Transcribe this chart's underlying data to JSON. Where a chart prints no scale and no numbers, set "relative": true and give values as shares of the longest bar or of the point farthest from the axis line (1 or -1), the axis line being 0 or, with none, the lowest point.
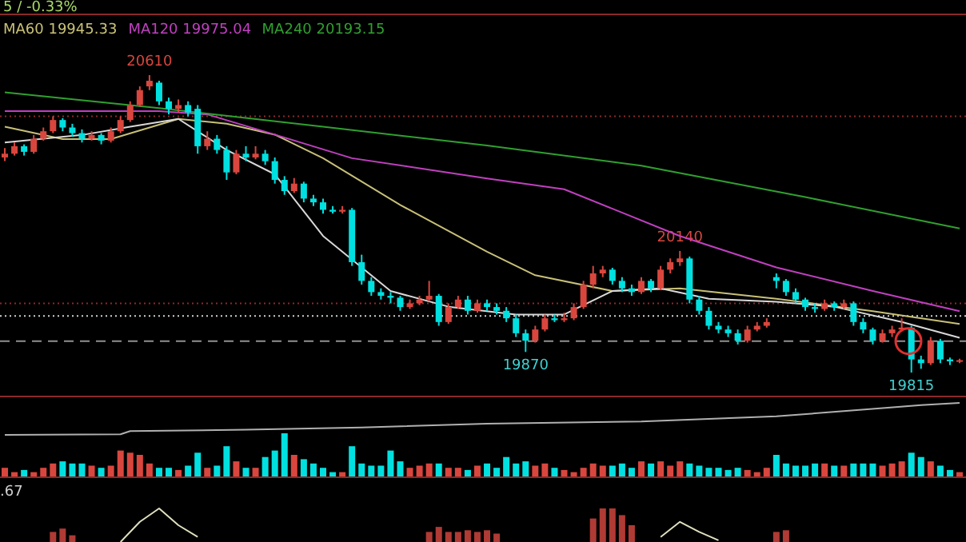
{
  "chart_data": [
    {
      "type": "candlestick",
      "title": "5 / -0.33%",
      "legend": "top left",
      "annotations": [
        {
          "text": "20610",
          "y": 20610
        },
        {
          "text": "20140",
          "y": 20140
        },
        {
          "text": "19870",
          "y": 19870
        },
        {
          "text": "19815",
          "y": 19815
        }
      ],
      "categories": [
        null,
        null,
        null,
        null,
        null,
        null,
        null,
        null,
        null,
        null,
        null,
        null,
        null,
        null,
        null,
        null,
        null,
        null,
        null,
        null,
        null,
        null,
        null,
        null,
        null,
        null,
        null,
        null,
        null,
        null,
        null,
        null,
        null,
        null,
        null,
        null,
        null,
        null,
        null,
        null,
        null,
        null,
        null,
        null,
        null,
        null,
        null,
        null,
        null,
        null,
        null,
        null,
        null,
        null,
        null,
        null,
        null,
        null,
        null,
        null,
        null,
        null,
        null,
        null,
        null,
        null,
        null,
        null,
        null,
        null,
        null,
        null,
        null,
        null,
        null,
        null,
        null,
        null,
        null,
        null,
        null,
        null,
        null,
        null,
        null,
        null,
        null,
        null,
        null,
        null,
        null,
        null,
        null,
        null,
        null,
        null,
        null,
        null,
        null,
        null
      ],
      "ohlc": [
        [
          20390,
          20415,
          20380,
          20400
        ],
        [
          20400,
          20430,
          20395,
          20420
        ],
        [
          20420,
          20425,
          20395,
          20405
        ],
        [
          20405,
          20450,
          20400,
          20440
        ],
        [
          20440,
          20470,
          20435,
          20460
        ],
        [
          20460,
          20500,
          20455,
          20490
        ],
        [
          20490,
          20495,
          20460,
          20470
        ],
        [
          20470,
          20480,
          20445,
          20455
        ],
        [
          20455,
          20465,
          20430,
          20440
        ],
        [
          20440,
          20460,
          20435,
          20450
        ],
        [
          20450,
          20455,
          20425,
          20435
        ],
        [
          20435,
          20470,
          20430,
          20460
        ],
        [
          20460,
          20500,
          20455,
          20490
        ],
        [
          20490,
          20540,
          20485,
          20530
        ],
        [
          20530,
          20580,
          20525,
          20570
        ],
        [
          20580,
          20610,
          20570,
          20595
        ],
        [
          20590,
          20595,
          20530,
          20540
        ],
        [
          20540,
          20550,
          20505,
          20520
        ],
        [
          20520,
          20545,
          20510,
          20530
        ],
        [
          20530,
          20540,
          20500,
          20510
        ],
        [
          20520,
          20530,
          20400,
          20420
        ],
        [
          20420,
          20460,
          20410,
          20440
        ],
        [
          20440,
          20450,
          20400,
          20410
        ],
        [
          20410,
          20420,
          20330,
          20350
        ],
        [
          20350,
          20410,
          20345,
          20400
        ],
        [
          20400,
          20420,
          20380,
          20390
        ],
        [
          20390,
          20420,
          20385,
          20400
        ],
        [
          20400,
          20410,
          20370,
          20380
        ],
        [
          20380,
          20390,
          20320,
          20330
        ],
        [
          20330,
          20340,
          20290,
          20300
        ],
        [
          20300,
          20335,
          20295,
          20320
        ],
        [
          20320,
          20325,
          20270,
          20280
        ],
        [
          20280,
          20290,
          20260,
          20270
        ],
        [
          20270,
          20280,
          20240,
          20250
        ],
        [
          20250,
          20260,
          20240,
          20245
        ],
        [
          20245,
          20260,
          20240,
          20250
        ],
        [
          20250,
          20255,
          20100,
          20110
        ],
        [
          20110,
          20130,
          20050,
          20060
        ],
        [
          20060,
          20070,
          20020,
          20030
        ],
        [
          20030,
          20040,
          20010,
          20020
        ],
        [
          20020,
          20030,
          20000,
          20015
        ],
        [
          20015,
          20020,
          19980,
          19990
        ],
        [
          19990,
          20010,
          19985,
          20000
        ],
        [
          20000,
          20020,
          19995,
          20010
        ],
        [
          20010,
          20060,
          20005,
          20020
        ],
        [
          20020,
          20025,
          19940,
          19950
        ],
        [
          19950,
          20000,
          19945,
          19990
        ],
        [
          19990,
          20020,
          19985,
          20010
        ],
        [
          20010,
          20020,
          19970,
          19980
        ],
        [
          19980,
          20010,
          19975,
          20000
        ],
        [
          20000,
          20010,
          19980,
          19990
        ],
        [
          19990,
          20000,
          19970,
          19980
        ],
        [
          19980,
          19990,
          19950,
          19960
        ],
        [
          19960,
          19970,
          19910,
          19920
        ],
        [
          19920,
          19930,
          19870,
          19900
        ],
        [
          19900,
          19940,
          19895,
          19930
        ],
        [
          19930,
          19970,
          19925,
          19960
        ],
        [
          19960,
          19970,
          19950,
          19955
        ],
        [
          19955,
          19975,
          19950,
          19960
        ],
        [
          19960,
          20000,
          19955,
          19990
        ],
        [
          19990,
          20060,
          19985,
          20050
        ],
        [
          20050,
          20100,
          20040,
          20080
        ],
        [
          20080,
          20100,
          20070,
          20090
        ],
        [
          20090,
          20095,
          20050,
          20060
        ],
        [
          20060,
          20070,
          20030,
          20040
        ],
        [
          20040,
          20050,
          20020,
          20030
        ],
        [
          20030,
          20070,
          20025,
          20060
        ],
        [
          20060,
          20065,
          20030,
          20040
        ],
        [
          20040,
          20100,
          20035,
          20090
        ],
        [
          20090,
          20120,
          20080,
          20110
        ],
        [
          20110,
          20140,
          20100,
          20120
        ],
        [
          20120,
          20125,
          20000,
          20010
        ],
        [
          20010,
          20020,
          19970,
          19980
        ],
        [
          19980,
          19990,
          19930,
          19940
        ],
        [
          19940,
          19950,
          19920,
          19930
        ],
        [
          19930,
          19940,
          19910,
          19920
        ],
        [
          19920,
          19930,
          19890,
          19900
        ],
        [
          19900,
          19940,
          19895,
          19930
        ],
        [
          19930,
          19950,
          19925,
          19940
        ],
        [
          19940,
          19960,
          19935,
          19950
        ],
        [
          20070,
          20080,
          20040,
          20060
        ],
        [
          20060,
          20065,
          20020,
          20030
        ],
        [
          20030,
          20040,
          20000,
          20010
        ],
        [
          20010,
          20015,
          19980,
          19990
        ],
        [
          19990,
          20000,
          19975,
          19985
        ],
        [
          19985,
          20010,
          19980,
          20000
        ],
        [
          20000,
          20005,
          19980,
          19990
        ],
        [
          19990,
          20010,
          19985,
          20000
        ],
        [
          20000,
          20005,
          19940,
          19950
        ],
        [
          19950,
          19960,
          19920,
          19930
        ],
        [
          19930,
          19935,
          19890,
          19900
        ],
        [
          19900,
          19930,
          19895,
          19920
        ],
        [
          19920,
          19940,
          19910,
          19930
        ],
        [
          19930,
          19960,
          19925,
          19935
        ],
        [
          19935,
          19940,
          19815,
          19850
        ],
        [
          19850,
          19860,
          19825,
          19840
        ],
        [
          19840,
          19910,
          19835,
          19900
        ],
        [
          19900,
          19905,
          19840,
          19850
        ],
        [
          19850,
          19855,
          19835,
          19845
        ],
        [
          19845,
          19852,
          19840,
          19848
        ]
      ],
      "series": [
        {
          "type": "line",
          "name": "MA60 19945.33",
          "color": "#c8c078",
          "values": [
            20472,
            null,
            null,
            null,
            null,
            null,
            20439,
            null,
            null,
            null,
            null,
            20439,
            null,
            null,
            null,
            null,
            null,
            null,
            20493,
            null,
            null,
            null,
            null,
            20480,
            null,
            null,
            null,
            null,
            20451,
            null,
            null,
            null,
            null,
            20388,
            null,
            null,
            null,
            null,
            null,
            null,
            null,
            20263,
            null,
            null,
            null,
            null,
            null,
            null,
            null,
            null,
            20138,
            null,
            null,
            null,
            null,
            20075,
            null,
            null,
            null,
            null,
            null,
            null,
            null,
            20033,
            null,
            null,
            null,
            null,
            null,
            null,
            20040,
            null,
            null,
            null,
            null,
            null,
            null,
            null,
            null,
            null,
            20012,
            null,
            null,
            null,
            null,
            null,
            null,
            null,
            null,
            null,
            19979,
            null,
            null,
            null,
            null,
            null,
            null,
            null,
            null,
            19945
          ]
        },
        {
          "type": "line",
          "name": "MA120 19975.04",
          "color": "#c040c0",
          "values": [
            20514,
            null,
            null,
            null,
            null,
            null,
            null,
            null,
            null,
            null,
            null,
            null,
            null,
            null,
            null,
            null,
            20514,
            null,
            null,
            null,
            null,
            20505,
            null,
            null,
            null,
            null,
            null,
            null,
            20451,
            null,
            null,
            null,
            null,
            null,
            null,
            null,
            20388,
            null,
            null,
            null,
            null,
            null,
            null,
            null,
            null,
            null,
            null,
            null,
            null,
            null,
            20334,
            null,
            null,
            null,
            null,
            null,
            null,
            null,
            20305,
            null,
            null,
            null,
            null,
            null,
            null,
            null,
            null,
            null,
            null,
            null,
            20180,
            null,
            null,
            null,
            null,
            null,
            null,
            null,
            null,
            null,
            20096,
            null,
            null,
            null,
            null,
            null,
            null,
            null,
            null,
            null,
            20033,
            null,
            null,
            null,
            null,
            null,
            null,
            null,
            null,
            19979
          ]
        },
        {
          "type": "line",
          "name": "MA240 20193.15",
          "color": "#30a030",
          "values": [
            20564,
            null,
            null,
            null,
            null,
            null,
            null,
            null,
            null,
            null,
            null,
            null,
            null,
            null,
            null,
            null,
            20522,
            null,
            null,
            null,
            null,
            null,
            null,
            null,
            null,
            null,
            null,
            null,
            null,
            null,
            null,
            null,
            null,
            20472,
            null,
            null,
            null,
            null,
            null,
            null,
            null,
            null,
            null,
            null,
            null,
            null,
            null,
            null,
            null,
            null,
            20422,
            null,
            null,
            null,
            null,
            null,
            null,
            null,
            null,
            null,
            null,
            null,
            null,
            null,
            null,
            null,
            20368,
            null,
            null,
            null,
            null,
            null,
            null,
            null,
            null,
            null,
            null,
            null,
            null,
            null,
            null,
            null,
            null,
            20284,
            null,
            null,
            null,
            null,
            null,
            null,
            null,
            null,
            null,
            null,
            null,
            null,
            null,
            null,
            null,
            20200
          ]
        },
        {
          "type": "line",
          "color": "#d8d8d8",
          "values": [
            20430,
            null,
            null,
            null,
            null,
            null,
            null,
            null,
            20450,
            null,
            null,
            null,
            null,
            20472,
            null,
            null,
            null,
            null,
            20493,
            null,
            null,
            null,
            null,
            20410,
            null,
            null,
            null,
            null,
            20345,
            null,
            null,
            null,
            null,
            20180,
            null,
            null,
            null,
            null,
            null,
            null,
            20033,
            null,
            null,
            null,
            null,
            null,
            19991,
            null,
            null,
            null,
            null,
            null,
            null,
            19970,
            null,
            null,
            null,
            null,
            19970,
            null,
            null,
            null,
            null,
            20033,
            null,
            null,
            null,
            null,
            20040,
            null,
            null,
            null,
            null,
            20012,
            null,
            null,
            null,
            null,
            null,
            null,
            20004,
            null,
            null,
            null,
            null,
            null,
            19991,
            null,
            null,
            null,
            null,
            null,
            null,
            19950,
            null,
            null,
            null,
            null,
            null,
            19908
          ]
        }
      ],
      "ref_lines": [
        {
          "axis": "y",
          "value": 20500,
          "color": "#8a2a2a",
          "line_style": "dotted"
        },
        {
          "axis": "y",
          "value": 20000,
          "color": "#8a2a2a",
          "line_style": "dotted"
        },
        {
          "axis": "y",
          "value": 19966,
          "color": "#d0d0d0",
          "line_style": "dotted"
        },
        {
          "axis": "y",
          "value": 19899,
          "color": "#909090",
          "line_style": "dashed"
        }
      ]
    },
    {
      "type": "bar",
      "relative": true,
      "categories": [
        null,
        null,
        null,
        null,
        null,
        null,
        null,
        null,
        null,
        null,
        null,
        null,
        null,
        null,
        null,
        null,
        null,
        null,
        null,
        null,
        null,
        null,
        null,
        null,
        null,
        null,
        null,
        null,
        null,
        null,
        null,
        null,
        null,
        null,
        null,
        null,
        null,
        null,
        null,
        null,
        null,
        null,
        null,
        null,
        null,
        null,
        null,
        null,
        null,
        null,
        null,
        null,
        null,
        null,
        null,
        null,
        null,
        null,
        null,
        null,
        null,
        null,
        null,
        null,
        null,
        null,
        null,
        null,
        null,
        null,
        null,
        null,
        null,
        null,
        null,
        null,
        null,
        null,
        null,
        null,
        null,
        null,
        null,
        null,
        null,
        null,
        null,
        null,
        null,
        null,
        null,
        null,
        null,
        null,
        null,
        null,
        null,
        null,
        null,
        null
      ],
      "values": [
        0.2,
        0.1,
        0.15,
        0.1,
        0.2,
        0.3,
        0.35,
        0.3,
        0.3,
        0.25,
        0.2,
        0.25,
        0.6,
        0.55,
        0.5,
        0.3,
        0.2,
        0.2,
        0.15,
        0.25,
        0.55,
        0.2,
        0.25,
        0.7,
        0.35,
        0.2,
        0.2,
        0.45,
        0.6,
        1,
        0.5,
        0.4,
        0.3,
        0.2,
        0.1,
        0.1,
        0.7,
        0.3,
        0.25,
        0.25,
        0.6,
        0.35,
        0.2,
        0.25,
        0.3,
        0.3,
        0.2,
        0.2,
        0.15,
        0.25,
        0.3,
        0.2,
        0.45,
        0.3,
        0.35,
        0.25,
        0.3,
        0.2,
        0.15,
        0.1,
        0.2,
        0.3,
        0.25,
        0.25,
        0.3,
        0.2,
        0.35,
        0.3,
        0.35,
        0.25,
        0.35,
        0.3,
        0.25,
        0.2,
        0.2,
        0.15,
        0.2,
        0.15,
        0.1,
        0.2,
        0.5,
        0.3,
        0.25,
        0.25,
        0.3,
        0.3,
        0.25,
        0.25,
        0.3,
        0.3,
        0.3,
        0.25,
        0.3,
        0.35,
        0.55,
        0.45,
        0.35,
        0.25,
        0.15,
        0.1
      ],
      "colors": [
        "#d9463e",
        "#d9463e",
        "#00e0e0",
        "#d9463e",
        "#d9463e",
        "#d9463e",
        "#00e0e0",
        "#00e0e0",
        "#00e0e0",
        "#d9463e",
        "#00e0e0",
        "#d9463e",
        "#d9463e",
        "#d9463e",
        "#d9463e",
        "#d9463e",
        "#00e0e0",
        "#00e0e0",
        "#d9463e",
        "#00e0e0",
        "#00e0e0",
        "#d9463e",
        "#00e0e0",
        "#00e0e0",
        "#d9463e",
        "#00e0e0",
        "#d9463e",
        "#00e0e0",
        "#00e0e0",
        "#00e0e0",
        "#d9463e",
        "#00e0e0",
        "#00e0e0",
        "#00e0e0",
        "#00e0e0",
        "#d9463e",
        "#00e0e0",
        "#00e0e0",
        "#00e0e0",
        "#00e0e0",
        "#00e0e0",
        "#00e0e0",
        "#d9463e",
        "#d9463e",
        "#d9463e",
        "#00e0e0",
        "#d9463e",
        "#d9463e",
        "#00e0e0",
        "#d9463e",
        "#00e0e0",
        "#00e0e0",
        "#00e0e0",
        "#00e0e0",
        "#00e0e0",
        "#d9463e",
        "#d9463e",
        "#00e0e0",
        "#d9463e",
        "#d9463e",
        "#d9463e",
        "#d9463e",
        "#d9463e",
        "#00e0e0",
        "#00e0e0",
        "#00e0e0",
        "#d9463e",
        "#00e0e0",
        "#d9463e",
        "#d9463e",
        "#d9463e",
        "#00e0e0",
        "#00e0e0",
        "#00e0e0",
        "#00e0e0",
        "#00e0e0",
        "#00e0e0",
        "#d9463e",
        "#d9463e",
        "#d9463e",
        "#00e0e0",
        "#00e0e0",
        "#00e0e0",
        "#00e0e0",
        "#00e0e0",
        "#d9463e",
        "#00e0e0",
        "#d9463e",
        "#00e0e0",
        "#00e0e0",
        "#00e0e0",
        "#d9463e",
        "#d9463e",
        "#d9463e",
        "#00e0e0",
        "#00e0e0",
        "#d9463e",
        "#00e0e0",
        "#00e0e0",
        "#d9463e"
      ]
    },
    {
      "type": "bar",
      "relative": true,
      "annotations": [
        ".67"
      ],
      "color": "#b03a34",
      "categories": [
        null,
        null,
        null,
        null,
        null,
        null,
        null,
        null,
        null,
        null,
        null,
        null,
        null,
        null,
        null,
        null,
        null,
        null,
        null,
        null,
        null,
        null,
        null,
        null,
        null,
        null,
        null,
        null,
        null,
        null,
        null,
        null,
        null,
        null,
        null,
        null,
        null,
        null,
        null,
        null,
        null,
        null,
        null,
        null,
        null,
        null,
        null,
        null,
        null,
        null,
        null,
        null,
        null,
        null,
        null,
        null,
        null,
        null,
        null,
        null,
        null,
        null,
        null,
        null,
        null,
        null,
        null,
        null,
        null,
        null,
        null,
        null,
        null,
        null,
        null,
        null,
        null,
        null,
        null,
        null,
        null,
        null,
        null,
        null,
        null,
        null,
        null,
        null,
        null,
        null,
        null,
        null,
        null,
        null,
        null,
        null,
        null,
        null,
        null,
        null
      ],
      "values": [
        null,
        null,
        null,
        null,
        null,
        0.3,
        0.4,
        0.2,
        null,
        null,
        null,
        null,
        null,
        null,
        null,
        null,
        null,
        null,
        null,
        null,
        null,
        null,
        null,
        null,
        null,
        null,
        null,
        null,
        null,
        null,
        null,
        null,
        null,
        null,
        null,
        null,
        null,
        null,
        null,
        null,
        null,
        null,
        null,
        null,
        0.3,
        0.45,
        0.3,
        0.3,
        0.35,
        0.3,
        0.35,
        0.25,
        null,
        null,
        null,
        null,
        null,
        null,
        null,
        null,
        null,
        0.7,
        1,
        1,
        0.8,
        0.5,
        null,
        null,
        null,
        null,
        null,
        null,
        null,
        null,
        null,
        null,
        null,
        null,
        null,
        null,
        0.3,
        0.35,
        null,
        null,
        null,
        null,
        null,
        null,
        null,
        null,
        null,
        null,
        null,
        null,
        null,
        null,
        null,
        null,
        null,
        null
      ]
    },
    {
      "type": "line",
      "relative": true,
      "color": "#b0b0b0",
      "categories": [
        null,
        null,
        null,
        null,
        null,
        null,
        null,
        null,
        null,
        null,
        null,
        null,
        null,
        null,
        null,
        null,
        null,
        null,
        null,
        null,
        null,
        null,
        null,
        null,
        null,
        null,
        null,
        null,
        null,
        null,
        null,
        null,
        null,
        null,
        null,
        null,
        null,
        null,
        null,
        null,
        null,
        null,
        null,
        null,
        null,
        null,
        null,
        null,
        null,
        null,
        null,
        null,
        null,
        null,
        null,
        null,
        null,
        null,
        null,
        null,
        null,
        null,
        null,
        null,
        null,
        null,
        null,
        null,
        null,
        null,
        null,
        null,
        null,
        null,
        null,
        null,
        null,
        null,
        null,
        null,
        null,
        null,
        null,
        null,
        null,
        null,
        null,
        null,
        null,
        null,
        null,
        null,
        null,
        null,
        null,
        null,
        null,
        null,
        null,
        null
      ],
      "values": [
        0,
        null,
        null,
        null,
        null,
        null,
        null,
        null,
        null,
        null,
        null,
        null,
        0.02,
        0.12,
        null,
        null,
        null,
        null,
        null,
        null,
        null,
        null,
        null,
        null,
        null,
        0.16,
        null,
        null,
        null,
        null,
        null,
        null,
        null,
        null,
        null,
        null,
        null,
        0.23,
        null,
        null,
        null,
        null,
        null,
        null,
        null,
        null,
        null,
        null,
        null,
        null,
        0.35,
        null,
        null,
        null,
        null,
        null,
        null,
        null,
        null,
        null,
        null,
        null,
        null,
        null,
        null,
        null,
        0.42,
        null,
        null,
        null,
        null,
        null,
        null,
        null,
        null,
        null,
        null,
        null,
        null,
        null,
        0.58,
        null,
        null,
        null,
        null,
        null,
        null,
        null,
        null,
        null,
        null,
        null,
        null,
        null,
        null,
        0.93,
        null,
        null,
        null,
        1
      ]
    },
    {
      "type": "line",
      "relative": true,
      "categories": [
        null,
        null,
        null,
        null,
        null,
        null,
        null,
        null,
        null,
        null,
        null,
        null,
        null,
        null,
        null,
        null,
        null,
        null,
        null,
        null,
        null,
        null,
        null,
        null,
        null,
        null,
        null,
        null,
        null,
        null,
        null,
        null,
        null,
        null,
        null,
        null,
        null,
        null,
        null,
        null,
        null,
        null,
        null,
        null,
        null,
        null,
        null,
        null,
        null,
        null,
        null,
        null,
        null,
        null,
        null,
        null,
        null,
        null,
        null,
        null,
        null,
        null,
        null,
        null,
        null,
        null,
        null,
        null,
        null,
        null,
        null,
        null,
        null,
        null,
        null,
        null,
        null,
        null,
        null,
        null,
        null,
        null,
        null,
        null,
        null,
        null,
        null,
        null,
        null,
        null,
        null,
        null,
        null,
        null,
        null,
        null,
        null,
        null,
        null,
        null
      ],
      "series": [
        {
          "color": "#e0e0c0",
          "values": [
            null,
            null,
            null,
            null,
            null,
            null,
            null,
            null,
            null,
            null,
            null,
            null,
            0,
            null,
            0.6,
            null,
            1,
            null,
            0.5,
            null,
            0.15,
            null,
            null,
            null,
            null,
            null,
            null,
            null,
            null,
            null,
            null,
            null,
            null,
            null,
            null,
            null,
            null,
            null,
            null,
            null,
            null,
            null,
            null,
            null,
            null,
            null,
            null,
            null,
            null,
            null,
            null,
            null,
            null,
            null,
            null,
            null,
            null,
            null,
            null,
            null,
            null,
            null,
            null,
            null,
            null,
            null,
            null,
            null,
            null,
            null,
            null,
            null,
            null,
            null,
            null,
            null,
            null,
            null,
            null,
            null,
            null,
            null,
            null,
            null,
            null,
            null,
            null,
            null,
            null,
            null,
            null,
            null,
            null,
            null,
            null,
            null,
            null,
            null,
            null,
            null
          ]
        },
        {
          "color": "#e0e0c0",
          "values": [
            null,
            null,
            null,
            null,
            null,
            null,
            null,
            null,
            null,
            null,
            null,
            null,
            null,
            null,
            null,
            null,
            null,
            null,
            null,
            null,
            null,
            null,
            null,
            null,
            null,
            null,
            null,
            null,
            null,
            null,
            null,
            null,
            null,
            null,
            null,
            null,
            null,
            null,
            null,
            null,
            null,
            null,
            null,
            null,
            null,
            null,
            null,
            null,
            null,
            null,
            null,
            null,
            null,
            null,
            null,
            null,
            null,
            null,
            null,
            null,
            null,
            null,
            null,
            null,
            null,
            null,
            null,
            null,
            0.15,
            null,
            0.6,
            null,
            0.3,
            null,
            0.05,
            null,
            null,
            null,
            null,
            null,
            null,
            null,
            null,
            null,
            null,
            null,
            null,
            null,
            null,
            null,
            null,
            null,
            null,
            null,
            null,
            null,
            null,
            null,
            null,
            null
          ]
        }
      ]
    }
  ]
}
